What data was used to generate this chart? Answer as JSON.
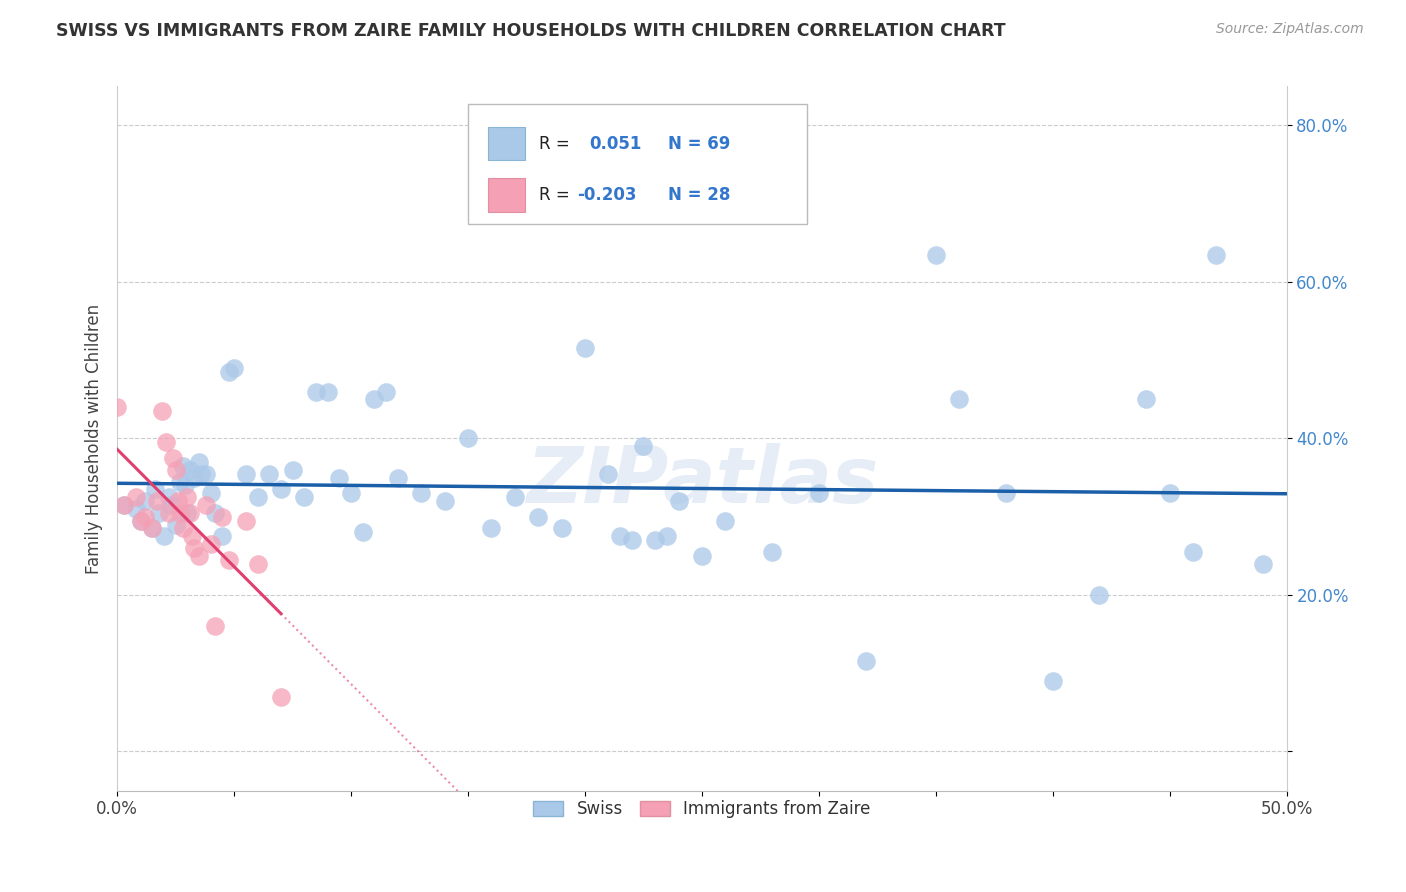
{
  "title": "SWISS VS IMMIGRANTS FROM ZAIRE FAMILY HOUSEHOLDS WITH CHILDREN CORRELATION CHART",
  "source": "Source: ZipAtlas.com",
  "ylabel": "Family Households with Children",
  "xlim": [
    0.0,
    0.5
  ],
  "ylim": [
    -0.05,
    0.85
  ],
  "yticks": [
    0.0,
    0.2,
    0.4,
    0.6,
    0.8
  ],
  "yticklabels": [
    "",
    "20.0%",
    "40.0%",
    "60.0%",
    "80.0%"
  ],
  "swiss_color": "#aac8e8",
  "zaire_color": "#f5a0b5",
  "swiss_line_color": "#1a5fa8",
  "zaire_line_color": "#e04070",
  "legend_r_swiss": "R =  0.051",
  "legend_n_swiss": "N = 69",
  "legend_r_zaire": "R = -0.203",
  "legend_n_zaire": "N = 28",
  "watermark": "ZIPatlas",
  "swiss_x": [
    0.003,
    0.008,
    0.01,
    0.012,
    0.015,
    0.016,
    0.018,
    0.02,
    0.022,
    0.023,
    0.025,
    0.027,
    0.028,
    0.029,
    0.03,
    0.031,
    0.033,
    0.035,
    0.036,
    0.038,
    0.04,
    0.042,
    0.045,
    0.048,
    0.05,
    0.055,
    0.06,
    0.065,
    0.07,
    0.075,
    0.08,
    0.085,
    0.09,
    0.095,
    0.1,
    0.105,
    0.11,
    0.115,
    0.12,
    0.13,
    0.14,
    0.15,
    0.16,
    0.17,
    0.18,
    0.19,
    0.2,
    0.21,
    0.215,
    0.22,
    0.225,
    0.23,
    0.235,
    0.24,
    0.25,
    0.26,
    0.28,
    0.3,
    0.32,
    0.35,
    0.36,
    0.38,
    0.4,
    0.42,
    0.44,
    0.45,
    0.46,
    0.47,
    0.49
  ],
  "swiss_y": [
    0.315,
    0.31,
    0.295,
    0.32,
    0.285,
    0.335,
    0.305,
    0.275,
    0.325,
    0.315,
    0.29,
    0.345,
    0.365,
    0.34,
    0.305,
    0.36,
    0.35,
    0.37,
    0.355,
    0.355,
    0.33,
    0.305,
    0.275,
    0.485,
    0.49,
    0.355,
    0.325,
    0.355,
    0.335,
    0.36,
    0.325,
    0.46,
    0.46,
    0.35,
    0.33,
    0.28,
    0.45,
    0.46,
    0.35,
    0.33,
    0.32,
    0.4,
    0.285,
    0.325,
    0.3,
    0.285,
    0.515,
    0.355,
    0.275,
    0.27,
    0.39,
    0.27,
    0.275,
    0.32,
    0.25,
    0.295,
    0.255,
    0.33,
    0.115,
    0.635,
    0.45,
    0.33,
    0.09,
    0.2,
    0.45,
    0.33,
    0.255,
    0.635,
    0.24
  ],
  "zaire_x": [
    0.0,
    0.003,
    0.008,
    0.01,
    0.012,
    0.015,
    0.017,
    0.019,
    0.021,
    0.022,
    0.024,
    0.025,
    0.026,
    0.027,
    0.028,
    0.03,
    0.031,
    0.032,
    0.033,
    0.035,
    0.038,
    0.04,
    0.042,
    0.045,
    0.048,
    0.055,
    0.06,
    0.07
  ],
  "zaire_y": [
    0.44,
    0.315,
    0.325,
    0.295,
    0.3,
    0.285,
    0.32,
    0.435,
    0.395,
    0.305,
    0.375,
    0.36,
    0.32,
    0.305,
    0.285,
    0.325,
    0.305,
    0.275,
    0.26,
    0.25,
    0.315,
    0.265,
    0.16,
    0.3,
    0.245,
    0.295,
    0.24,
    0.07
  ]
}
